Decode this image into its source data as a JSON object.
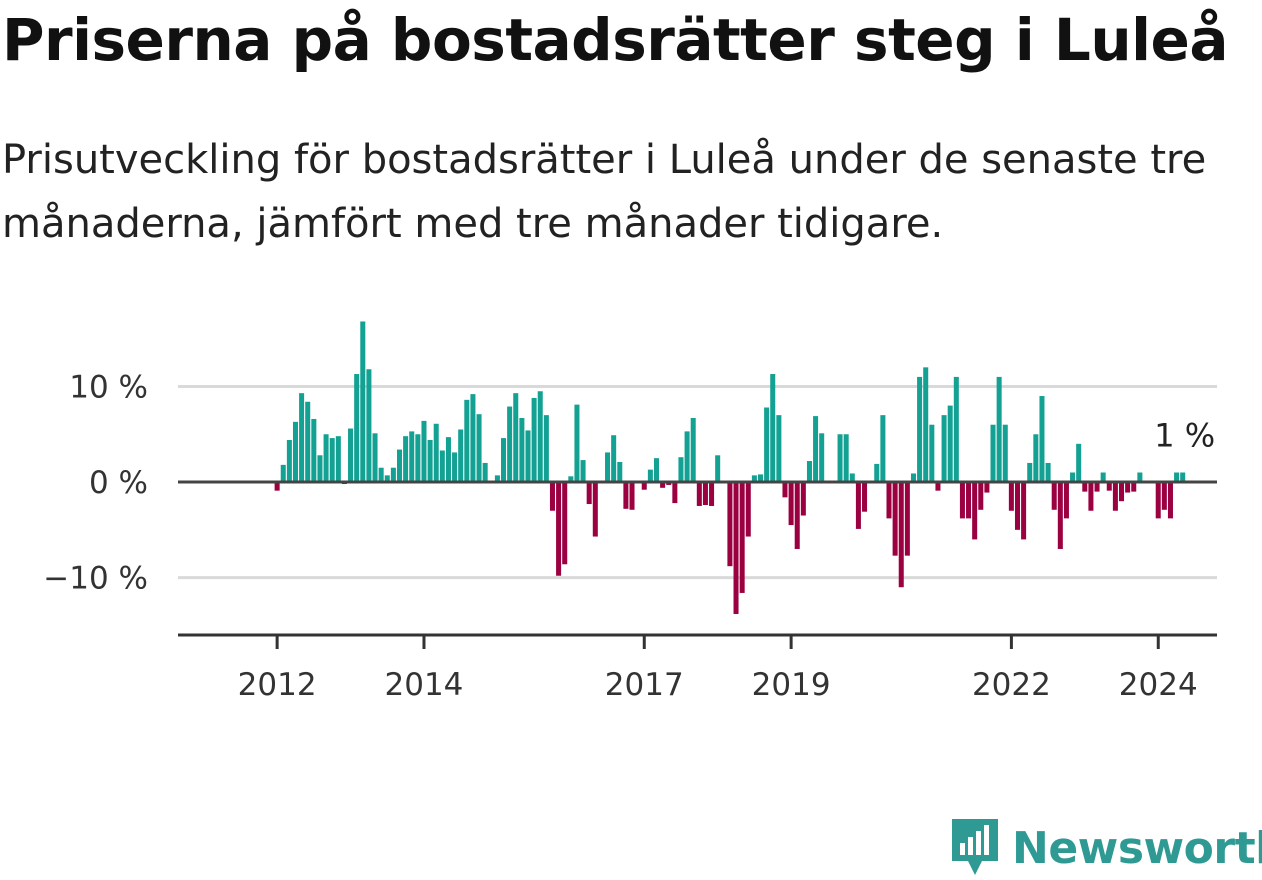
{
  "title": "Priserna på bostadsrätter steg i Luleå",
  "subtitle": "Prisutveckling för bostadsrätter i Luleå under de senaste tre månaderna, jämfört med tre månader tidigare.",
  "brand": {
    "name": "Newsworthy",
    "icon": "newsworthy-logo-icon",
    "color": "#2e9a93"
  },
  "colors": {
    "positive": "#12a192",
    "negative": "#9b0040",
    "grid": "#d9d9d9",
    "axis": "#333333"
  },
  "chart_data": {
    "type": "bar",
    "title": "Priserna på bostadsrätter steg i Luleå",
    "ylabel": "",
    "xlabel": "",
    "ylim": [
      -16,
      18
    ],
    "y_ticks": [
      {
        "value": 10,
        "label": "10 %"
      },
      {
        "value": 0,
        "label": "0 %"
      },
      {
        "value": -10,
        "label": "−10 %"
      }
    ],
    "x_ticks": [
      {
        "value": 2012.0,
        "label": "2012"
      },
      {
        "value": 2014.0,
        "label": "2014"
      },
      {
        "value": 2017.0,
        "label": "2017"
      },
      {
        "value": 2019.0,
        "label": "2019"
      },
      {
        "value": 2022.0,
        "label": "2022"
      },
      {
        "value": 2024.0,
        "label": "2024"
      }
    ],
    "x_range": [
      2010.65,
      2024.8
    ],
    "start": 2012.0,
    "step": 0.08333,
    "values": [
      -0.9,
      1.8,
      4.4,
      6.3,
      9.3,
      8.4,
      6.6,
      2.8,
      5.0,
      4.6,
      4.8,
      -0.2,
      5.6,
      11.3,
      16.8,
      11.8,
      5.1,
      1.5,
      0.7,
      1.5,
      3.4,
      4.8,
      5.3,
      5.0,
      6.4,
      4.4,
      6.1,
      3.3,
      4.7,
      3.1,
      5.5,
      8.6,
      9.2,
      7.1,
      2.0,
      0,
      0.7,
      4.6,
      7.9,
      9.3,
      6.7,
      5.4,
      8.8,
      9.5,
      7.0,
      -3.0,
      -9.8,
      -8.6,
      0.6,
      8.1,
      2.3,
      -2.3,
      -5.7,
      0,
      3.1,
      4.9,
      2.1,
      -2.8,
      -2.9,
      0,
      -0.8,
      1.3,
      2.5,
      -0.6,
      -0.3,
      -2.2,
      2.6,
      5.3,
      6.7,
      -2.5,
      -2.4,
      -2.5,
      2.8,
      0,
      -8.8,
      -13.8,
      -11.6,
      -5.7,
      0.7,
      0.8,
      7.8,
      11.3,
      7.0,
      -1.6,
      -4.5,
      -7.0,
      -3.5,
      2.2,
      6.9,
      5.1,
      0,
      0,
      5.0,
      5.0,
      0.9,
      -4.9,
      -3.1,
      0,
      1.9,
      7.0,
      -3.8,
      -7.7,
      -11.0,
      -7.7,
      0.9,
      11.0,
      12.0,
      6.0,
      -0.9,
      7.0,
      8.0,
      11.0,
      -3.8,
      -3.8,
      -6.0,
      -2.9,
      -1.1,
      6.0,
      11.0,
      6.0,
      -3.0,
      -5.0,
      -6.0,
      2.0,
      5.0,
      9.0,
      2.0,
      -2.9,
      -7.0,
      -3.8,
      1.0,
      4.0,
      -1.0,
      -3.0,
      -1.0,
      1.0,
      -0.9,
      -3.0,
      -2.0,
      -1.1,
      -1.0,
      1.0,
      0,
      0,
      -3.8,
      -2.9,
      -3.8,
      1.0,
      1.0
    ],
    "annotation": {
      "text": "1 %",
      "value": 1
    }
  }
}
